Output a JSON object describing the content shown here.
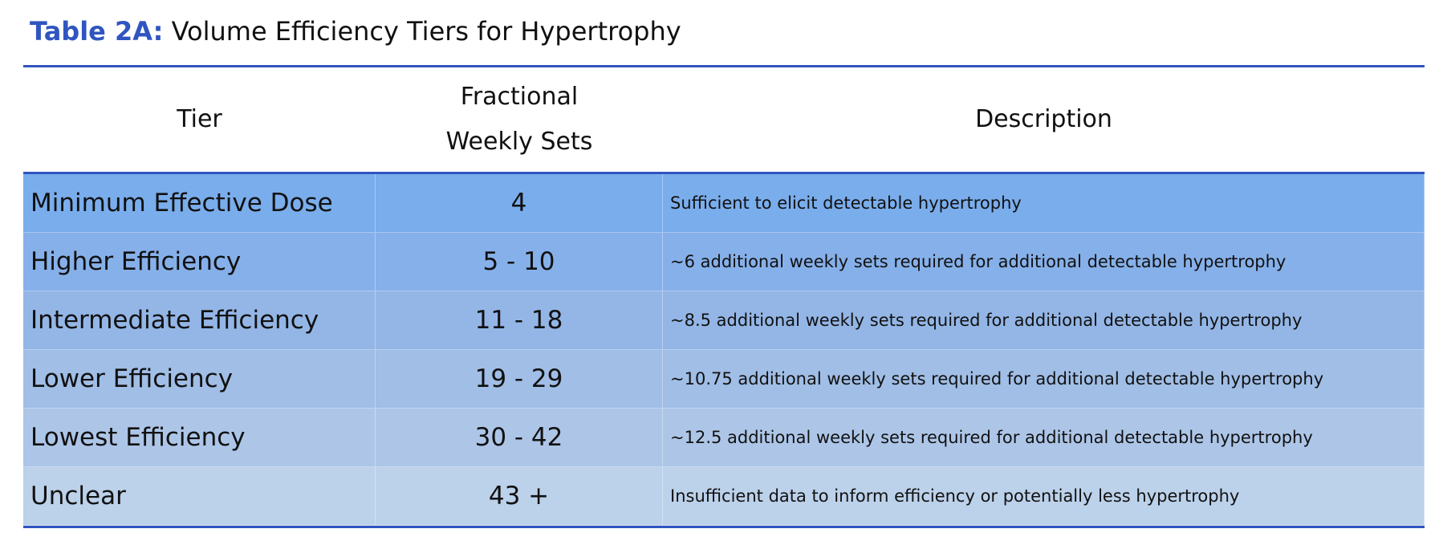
{
  "table": {
    "title_label": "Table 2A:",
    "title": "Volume Efficiency Tiers for Hypertrophy",
    "header": [
      "Tier",
      "Fractional Weekly Sets",
      "Description"
    ],
    "rows": [
      [
        "Minimum Effective Dose",
        "4",
        "Sufficient to elicit detectable hypertrophy"
      ],
      [
        "Higher Efficiency",
        "5 - 10",
        "~6 additional weekly sets required for additional detectable hypertrophy"
      ],
      [
        "Intermediate Efficiency",
        "11 - 18",
        "~8.5 additional weekly sets required for additional detectable hypertrophy"
      ],
      [
        "Lower Efficiency",
        "19 - 29",
        "~10.75 additional weekly sets required for additional detectable hypertrophy"
      ],
      [
        "Lowest Efficiency",
        "30 - 42",
        "~12.5 additional weekly sets required for additional detectable hypertrophy"
      ],
      [
        "Unclear",
        "43 +",
        "Insufficient data to inform efficiency or potentially less hypertrophy"
      ]
    ]
  }
}
